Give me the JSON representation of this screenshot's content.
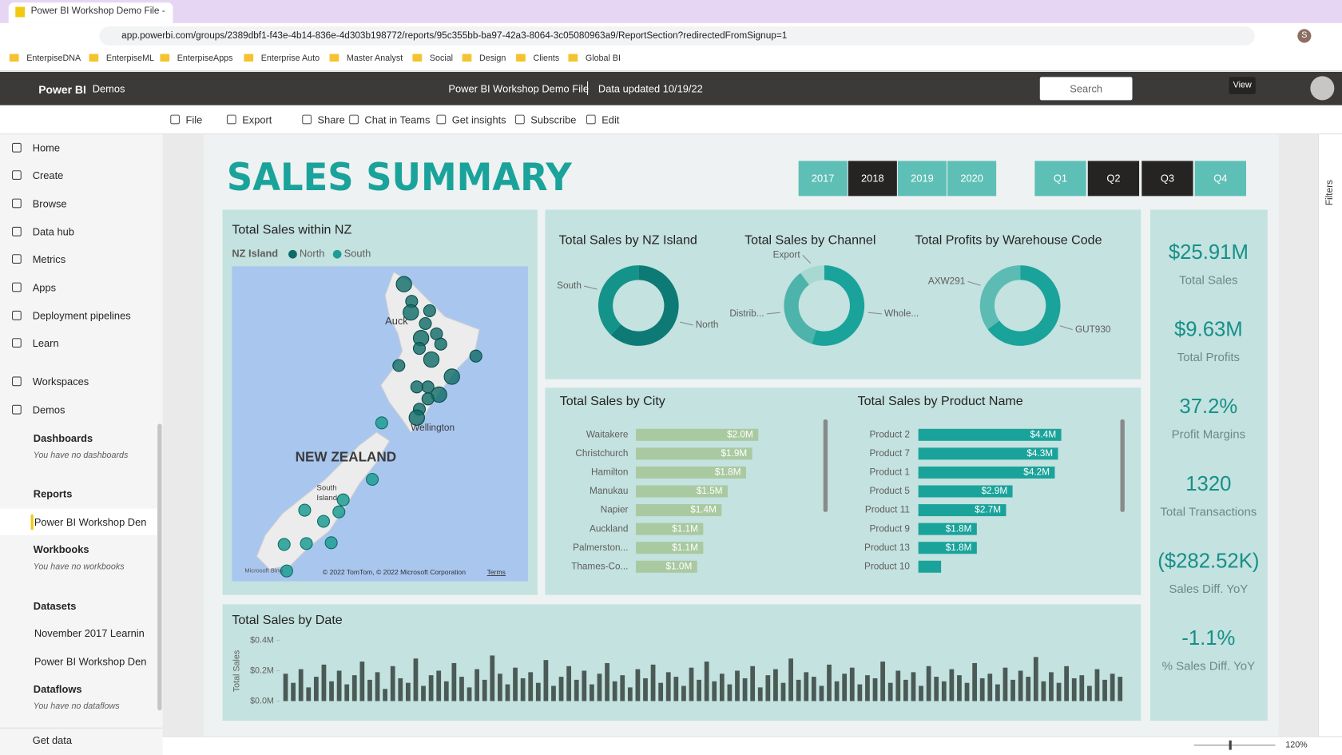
{
  "browser": {
    "tab_title": "Power BI Workshop Demo File -",
    "url": "app.powerbi.com/groups/2389dbf1-f43e-4b14-836e-4d303b198772/reports/95c355bb-ba97-42a3-8064-3c05080963a9/ReportSection?redirectedFromSignup=1",
    "profile_initial": "S",
    "bookmarks": [
      "EnterpiseDNA",
      "EnterpiseML",
      "EnterpiseApps",
      "Enterprise Auto",
      "Master Analyst",
      "Social",
      "Design",
      "Clients",
      "Global BI"
    ]
  },
  "header": {
    "app": "Power BI",
    "workspace": "Demos",
    "file": "Power BI Workshop Demo File",
    "updated": "Data updated 10/19/22",
    "search": "Search",
    "tooltip": "View"
  },
  "toolbar": {
    "actions": [
      "File",
      "Export",
      "Share",
      "Chat in Teams",
      "Get insights",
      "Subscribe",
      "Edit"
    ]
  },
  "sidebar": {
    "nav": [
      "Home",
      "Create",
      "Browse",
      "Data hub",
      "Metrics",
      "Apps",
      "Deployment pipelines",
      "Learn",
      "Workspaces",
      "Demos"
    ],
    "sections": [
      {
        "title": "Dashboards",
        "items": [],
        "empty": "You have no dashboards"
      },
      {
        "title": "Reports",
        "items": [
          "Power BI Workshop Den"
        ]
      },
      {
        "title": "Workbooks",
        "items": [],
        "empty": "You have no workbooks"
      },
      {
        "title": "Datasets",
        "items": [
          "November 2017 Learnin",
          "Power BI Workshop Den"
        ]
      },
      {
        "title": "Dataflows",
        "items": [],
        "empty": "You have no dataflows"
      }
    ],
    "footer": "Get data"
  },
  "filters_label": "Filters",
  "status": {
    "zoom": "120%"
  },
  "report": {
    "title": "SALES SUMMARY",
    "years": [
      {
        "label": "2017",
        "selected": false
      },
      {
        "label": "2018",
        "selected": true
      },
      {
        "label": "2019",
        "selected": false
      },
      {
        "label": "2020",
        "selected": false
      }
    ],
    "quarters": [
      {
        "label": "Q1",
        "selected": false
      },
      {
        "label": "Q2",
        "selected": true
      },
      {
        "label": "Q3",
        "selected": true
      },
      {
        "label": "Q4",
        "selected": false
      }
    ],
    "map": {
      "title": "Total Sales within NZ",
      "legend_title": "NZ Island",
      "legend": [
        {
          "name": "North",
          "color": "#0e6b67"
        },
        {
          "name": "South",
          "color": "#1f9d94"
        }
      ],
      "labels": [
        "Auck",
        "Wellington",
        "NEW ZEALAND",
        "South",
        "Island"
      ],
      "brand": "Microsoft Bing",
      "attribution": "© 2022 TomTom, © 2022 Microsoft Corporation",
      "terms": "Terms"
    },
    "donuts": [
      {
        "type": "pie",
        "title": "Total Sales by NZ Island",
        "categories": [
          "North",
          "South"
        ],
        "values": [
          62,
          38
        ],
        "colors": [
          "#0e7a75",
          "#14938b"
        ]
      },
      {
        "type": "pie",
        "title": "Total Sales by Channel",
        "categories": [
          "Whole...",
          "Distrib...",
          "Export"
        ],
        "values": [
          55,
          35,
          10
        ],
        "colors": [
          "#1aa39a",
          "#4db3ab",
          "#a8d8d2"
        ]
      },
      {
        "type": "pie",
        "title": "Total Profits by Warehouse Code",
        "categories": [
          "GUT930",
          "AXW291"
        ],
        "values": [
          65,
          35
        ],
        "colors": [
          "#1aa39a",
          "#5cbcb4"
        ]
      }
    ],
    "bars": [
      {
        "type": "bar",
        "title": "Total Sales by City",
        "categories": [
          "Waitakere",
          "Christchurch",
          "Hamilton",
          "Manukau",
          "Napier",
          "Auckland",
          "Palmerston...",
          "Thames-Co..."
        ],
        "values": [
          2000000,
          1900000,
          1800000,
          1500000,
          1400000,
          1100000,
          1100000,
          1000000
        ],
        "value_labels": [
          "$2.0M",
          "$1.9M",
          "$1.8M",
          "$1.5M",
          "$1.4M",
          "$1.1M",
          "$1.1M",
          "$1.0M"
        ],
        "color": "#a9c9a0"
      },
      {
        "type": "bar",
        "title": "Total Sales by Product Name",
        "categories": [
          "Product 2",
          "Product 7",
          "Product 1",
          "Product 5",
          "Product 11",
          "Product 9",
          "Product 13",
          "Product 10"
        ],
        "values": [
          4400000,
          4300000,
          4200000,
          2900000,
          2700000,
          1800000,
          1800000,
          700000
        ],
        "value_labels": [
          "$4.4M",
          "$4.3M",
          "$4.2M",
          "$2.9M",
          "$2.7M",
          "$1.8M",
          "$1.8M",
          null
        ],
        "color": "#1aa39a"
      }
    ],
    "kpis": [
      {
        "value": "$25.91M",
        "label": "Total Sales"
      },
      {
        "value": "$9.63M",
        "label": "Total Profits"
      },
      {
        "value": "37.2%",
        "label": "Profit Margins"
      },
      {
        "value": "1320",
        "label": "Total Transactions"
      },
      {
        "value": "($282.52K)",
        "label": "Sales Diff. YoY"
      },
      {
        "value": "-1.1%",
        "label": "% Sales Diff. YoY"
      }
    ],
    "date_chart": {
      "type": "bar",
      "title": "Total Sales by Date",
      "y_label": "Total Sales",
      "color": "#4b5a55",
      "ylim": [
        0,
        400000
      ],
      "yticks": [
        {
          "value": 0,
          "label": "$0.0M"
        },
        {
          "value": 200000,
          "label": "$0.2M"
        },
        {
          "value": 400000,
          "label": "$0.4M"
        }
      ],
      "values": [
        180000,
        120000,
        210000,
        90000,
        160000,
        240000,
        130000,
        200000,
        110000,
        170000,
        260000,
        140000,
        190000,
        80000,
        230000,
        150000,
        120000,
        280000,
        100000,
        170000,
        200000,
        130000,
        250000,
        160000,
        90000,
        210000,
        140000,
        300000,
        180000,
        110000,
        220000,
        150000,
        190000,
        120000,
        270000,
        100000,
        160000,
        230000,
        140000,
        200000,
        110000,
        180000,
        250000,
        130000,
        170000,
        90000,
        210000,
        150000,
        240000,
        120000,
        190000,
        160000,
        100000,
        220000,
        140000,
        260000,
        130000,
        180000,
        110000,
        200000,
        150000,
        230000,
        90000,
        170000,
        210000,
        120000,
        280000,
        140000,
        190000,
        160000,
        100000,
        240000,
        130000,
        180000,
        220000,
        110000,
        170000,
        150000,
        260000,
        120000,
        200000,
        140000,
        190000,
        100000,
        230000,
        160000,
        130000,
        210000,
        170000,
        120000,
        250000,
        150000,
        180000,
        110000,
        220000,
        140000,
        200000,
        160000,
        290000,
        130000,
        190000,
        120000,
        230000,
        150000,
        170000,
        100000,
        210000,
        140000,
        180000,
        160000
      ]
    }
  }
}
